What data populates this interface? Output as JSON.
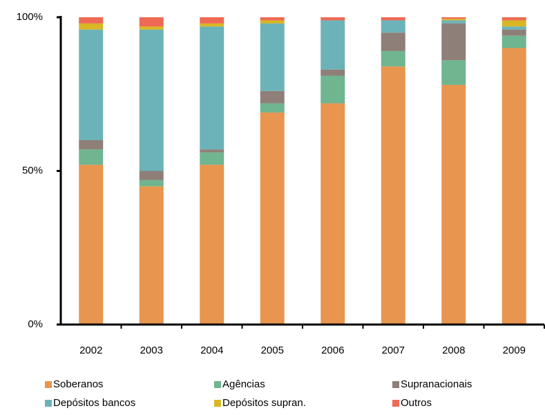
{
  "chart_data": {
    "type": "stacked_bar",
    "categories": [
      "2002",
      "2003",
      "2004",
      "2005",
      "2006",
      "2007",
      "2008",
      "2009"
    ],
    "series": [
      {
        "name": "Soberanos",
        "color": "#e8954f",
        "values": [
          52,
          45,
          52,
          69,
          72,
          84,
          78,
          90
        ]
      },
      {
        "name": "Agências",
        "color": "#6fb58f",
        "values": [
          5,
          2,
          4,
          3,
          9,
          5,
          8,
          4
        ]
      },
      {
        "name": "Supranacionais",
        "color": "#8e7f78",
        "values": [
          3,
          3,
          1,
          4,
          2,
          6,
          12,
          2
        ]
      },
      {
        "name": "Depósitos bancos",
        "color": "#6cb3b9",
        "values": [
          36,
          46,
          40,
          22,
          16,
          4,
          1,
          1
        ]
      },
      {
        "name": "Depósitos supran.",
        "color": "#d9b623",
        "values": [
          2,
          1,
          1,
          1,
          0,
          0,
          0.5,
          2
        ]
      },
      {
        "name": "Outros",
        "color": "#ee6a55",
        "values": [
          2,
          3,
          2,
          1,
          1,
          1,
          0.5,
          1
        ]
      }
    ],
    "ylim": [
      0,
      100
    ],
    "yticks": [
      {
        "value": 0,
        "label": "0%"
      },
      {
        "value": 50,
        "label": "50%"
      },
      {
        "value": 100,
        "label": "100%"
      }
    ],
    "grid": false
  }
}
